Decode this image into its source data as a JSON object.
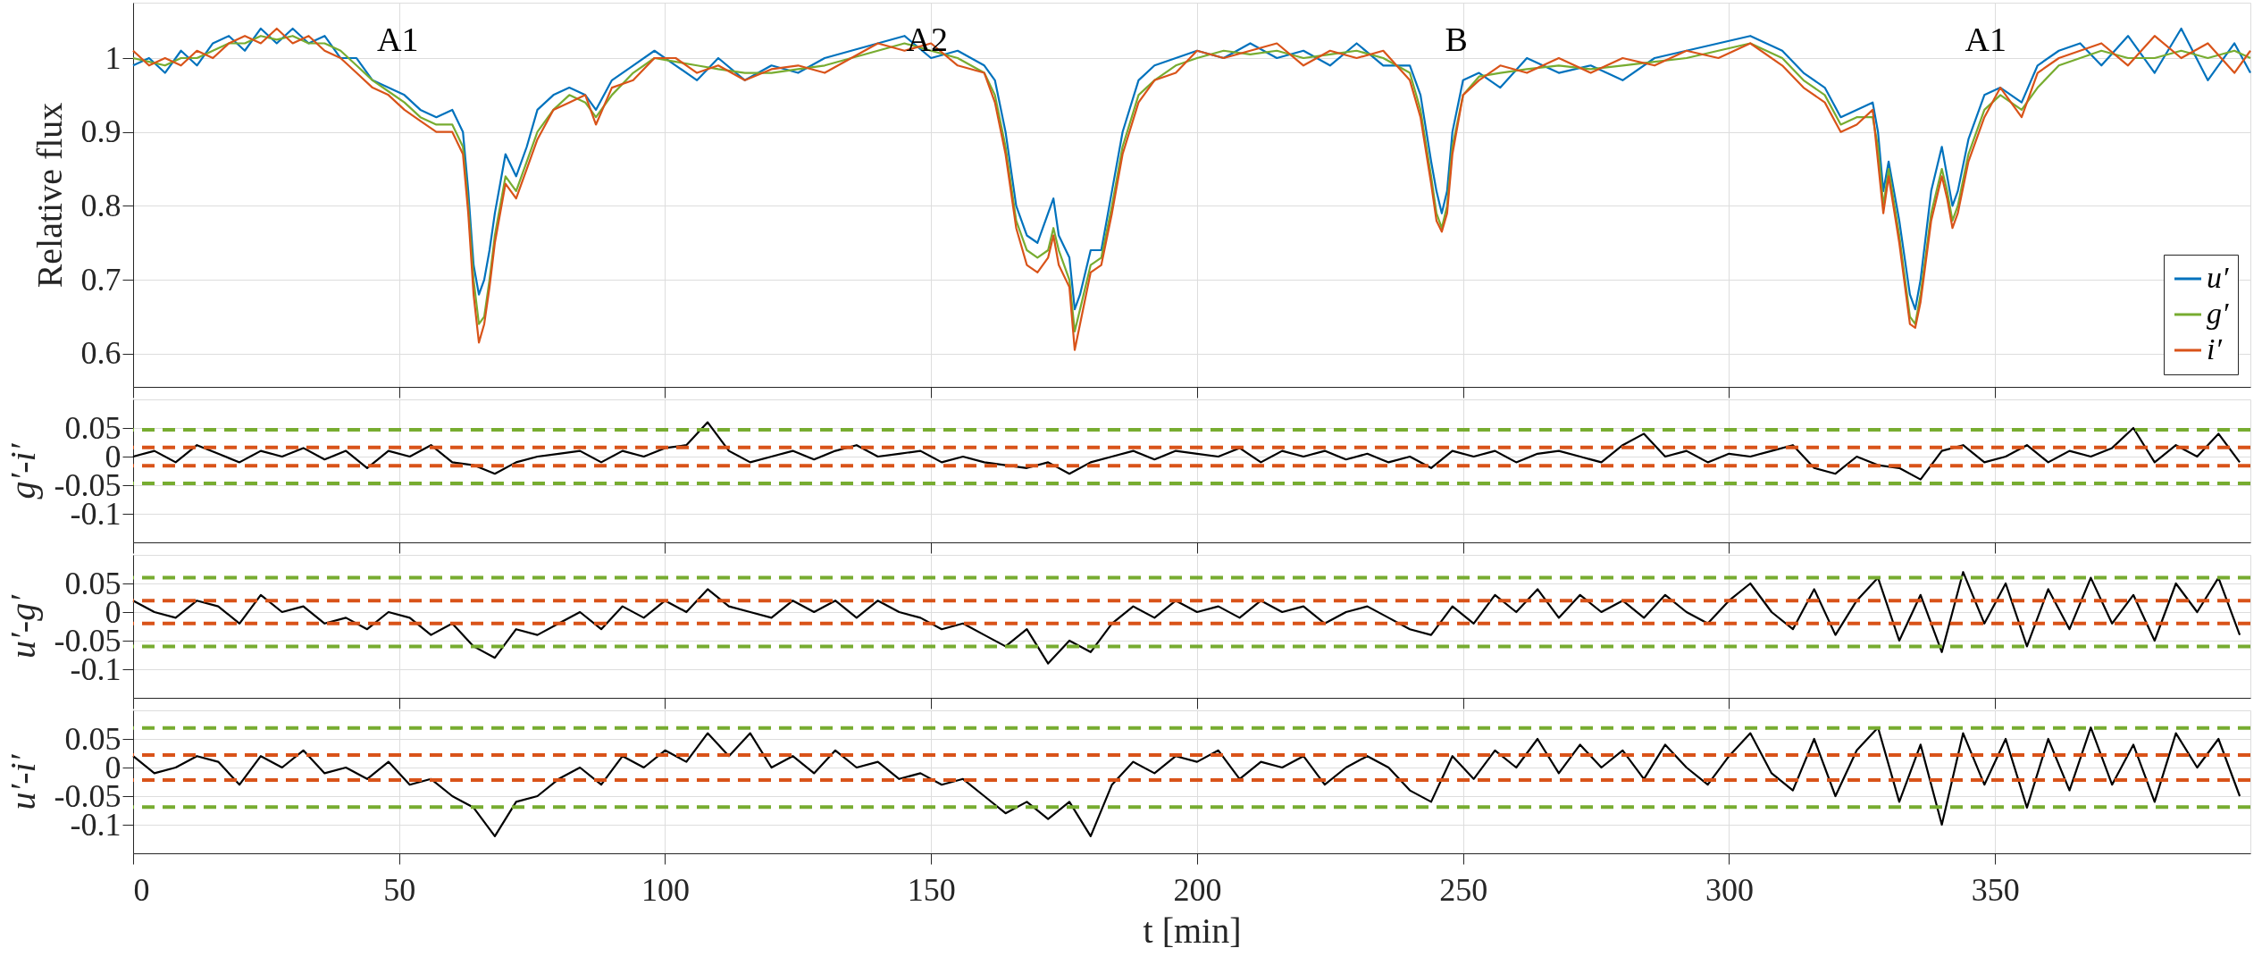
{
  "chart_data": [
    {
      "type": "line",
      "ylabel": "Relative flux",
      "xlim": [
        0,
        398
      ],
      "xticks": [
        0,
        50,
        100,
        150,
        200,
        250,
        300,
        350
      ],
      "ylim": [
        0.555,
        1.075
      ],
      "yticks": [
        0.6,
        0.7,
        0.8,
        0.9,
        1
      ],
      "grid": true,
      "legend": "bottom right",
      "tick_labels": "y",
      "annotations": [
        "A1",
        "A2",
        "B",
        "A1"
      ],
      "x": [
        0,
        3,
        6,
        9,
        12,
        15,
        18,
        21,
        24,
        27,
        30,
        33,
        36,
        39,
        42,
        45,
        48,
        51,
        54,
        57,
        60,
        62,
        63,
        64,
        65,
        66,
        67,
        68,
        70,
        72,
        74,
        76,
        79,
        82,
        85,
        87,
        90,
        94,
        98,
        102,
        106,
        110,
        115,
        120,
        125,
        130,
        135,
        140,
        145,
        150,
        155,
        160,
        162,
        164,
        166,
        168,
        170,
        172,
        173,
        174,
        176,
        177,
        178,
        180,
        182,
        184,
        186,
        189,
        192,
        196,
        200,
        205,
        210,
        215,
        220,
        225,
        230,
        235,
        240,
        242,
        244,
        245,
        246,
        247,
        248,
        250,
        253,
        257,
        262,
        268,
        274,
        280,
        286,
        292,
        298,
        304,
        310,
        314,
        318,
        321,
        324,
        327,
        328,
        329,
        330,
        332,
        334,
        335,
        336,
        338,
        340,
        341,
        342,
        343,
        345,
        348,
        351,
        355,
        358,
        362,
        366,
        370,
        375,
        380,
        385,
        390,
        395,
        398
      ],
      "series": [
        {
          "name": "u′",
          "color": "#0072bd",
          "values": [
            0.99,
            1.0,
            0.98,
            1.01,
            0.99,
            1.02,
            1.03,
            1.01,
            1.04,
            1.02,
            1.04,
            1.02,
            1.03,
            1.0,
            1.0,
            0.97,
            0.96,
            0.95,
            0.93,
            0.92,
            0.93,
            0.9,
            0.82,
            0.72,
            0.68,
            0.7,
            0.74,
            0.79,
            0.87,
            0.84,
            0.88,
            0.93,
            0.95,
            0.96,
            0.95,
            0.93,
            0.97,
            0.99,
            1.01,
            0.99,
            0.97,
            1.0,
            0.97,
            0.99,
            0.98,
            1.0,
            1.01,
            1.02,
            1.03,
            1.0,
            1.01,
            0.99,
            0.97,
            0.9,
            0.8,
            0.76,
            0.75,
            0.79,
            0.81,
            0.76,
            0.73,
            0.66,
            0.68,
            0.74,
            0.74,
            0.82,
            0.9,
            0.97,
            0.99,
            1.0,
            1.01,
            1.0,
            1.02,
            1.0,
            1.01,
            0.99,
            1.02,
            0.99,
            0.99,
            0.95,
            0.86,
            0.82,
            0.79,
            0.82,
            0.9,
            0.97,
            0.98,
            0.96,
            1.0,
            0.98,
            0.99,
            0.97,
            1.0,
            1.01,
            1.02,
            1.03,
            1.01,
            0.98,
            0.96,
            0.92,
            0.93,
            0.94,
            0.9,
            0.82,
            0.86,
            0.78,
            0.68,
            0.66,
            0.7,
            0.82,
            0.88,
            0.84,
            0.8,
            0.82,
            0.89,
            0.95,
            0.96,
            0.94,
            0.99,
            1.01,
            1.02,
            0.99,
            1.03,
            0.98,
            1.04,
            0.97,
            1.02,
            0.98
          ]
        },
        {
          "name": "g′",
          "color": "#77ac30",
          "values": [
            1.0,
            0.995,
            0.99,
            1.0,
            1.0,
            1.01,
            1.02,
            1.02,
            1.03,
            1.025,
            1.03,
            1.02,
            1.02,
            1.01,
            0.99,
            0.97,
            0.955,
            0.94,
            0.92,
            0.91,
            0.91,
            0.88,
            0.8,
            0.7,
            0.64,
            0.65,
            0.7,
            0.76,
            0.84,
            0.82,
            0.86,
            0.9,
            0.93,
            0.95,
            0.94,
            0.92,
            0.95,
            0.98,
            1.0,
            0.995,
            0.99,
            0.985,
            0.98,
            0.98,
            0.985,
            0.99,
            1.0,
            1.01,
            1.02,
            1.01,
            1.0,
            0.98,
            0.95,
            0.88,
            0.78,
            0.74,
            0.73,
            0.74,
            0.77,
            0.74,
            0.7,
            0.63,
            0.66,
            0.72,
            0.73,
            0.8,
            0.88,
            0.95,
            0.97,
            0.99,
            1.0,
            1.01,
            1.005,
            1.01,
            1.0,
            1.005,
            1.01,
            1.0,
            0.98,
            0.93,
            0.84,
            0.79,
            0.77,
            0.8,
            0.88,
            0.95,
            0.975,
            0.98,
            0.985,
            0.99,
            0.985,
            0.99,
            0.995,
            1.0,
            1.01,
            1.02,
            1.0,
            0.97,
            0.95,
            0.91,
            0.92,
            0.92,
            0.88,
            0.8,
            0.85,
            0.76,
            0.65,
            0.64,
            0.68,
            0.79,
            0.85,
            0.82,
            0.78,
            0.8,
            0.87,
            0.93,
            0.95,
            0.93,
            0.96,
            0.99,
            1.0,
            1.01,
            1.0,
            1.0,
            1.01,
            1.0,
            1.01,
            1.0
          ]
        },
        {
          "name": "i′",
          "color": "#d95319",
          "values": [
            1.01,
            0.99,
            1.0,
            0.99,
            1.01,
            1.0,
            1.02,
            1.03,
            1.02,
            1.04,
            1.02,
            1.03,
            1.01,
            1.0,
            0.98,
            0.96,
            0.95,
            0.93,
            0.915,
            0.9,
            0.9,
            0.87,
            0.79,
            0.68,
            0.615,
            0.64,
            0.69,
            0.75,
            0.83,
            0.81,
            0.85,
            0.89,
            0.93,
            0.94,
            0.95,
            0.91,
            0.96,
            0.97,
            1.0,
            1.0,
            0.98,
            0.99,
            0.97,
            0.985,
            0.99,
            0.98,
            1.0,
            1.02,
            1.01,
            1.02,
            0.99,
            0.98,
            0.94,
            0.87,
            0.77,
            0.72,
            0.71,
            0.73,
            0.76,
            0.72,
            0.69,
            0.605,
            0.64,
            0.71,
            0.72,
            0.79,
            0.87,
            0.94,
            0.97,
            0.98,
            1.01,
            1.0,
            1.01,
            1.02,
            0.99,
            1.01,
            1.0,
            1.01,
            0.97,
            0.92,
            0.83,
            0.78,
            0.765,
            0.79,
            0.87,
            0.95,
            0.97,
            0.99,
            0.98,
            1.0,
            0.98,
            1.0,
            0.99,
            1.01,
            1.0,
            1.02,
            0.99,
            0.96,
            0.94,
            0.9,
            0.91,
            0.93,
            0.86,
            0.79,
            0.84,
            0.75,
            0.64,
            0.635,
            0.67,
            0.78,
            0.84,
            0.81,
            0.77,
            0.79,
            0.86,
            0.92,
            0.96,
            0.92,
            0.98,
            1.0,
            1.01,
            1.02,
            0.99,
            1.03,
            1.0,
            1.02,
            0.98,
            1.01
          ]
        }
      ]
    },
    {
      "type": "line",
      "ylabel": "g′-i′",
      "xlim": [
        0,
        398
      ],
      "xticks": [
        0,
        50,
        100,
        150,
        200,
        250,
        300,
        350
      ],
      "ylim": [
        -0.15,
        0.1
      ],
      "yticks": [
        0.05,
        0,
        -0.05,
        -0.1
      ],
      "grid": true,
      "tick_labels": "y",
      "ref_lines": [
        {
          "axis": "y",
          "value": 0.047,
          "color": "#77ac30",
          "line_style": "dashed"
        },
        {
          "axis": "y",
          "value": 0.016,
          "color": "#d95319",
          "line_style": "dashed"
        },
        {
          "axis": "y",
          "value": -0.016,
          "color": "#d95319",
          "line_style": "dashed"
        },
        {
          "axis": "y",
          "value": -0.047,
          "color": "#77ac30",
          "line_style": "dashed"
        }
      ],
      "x": [
        0,
        4,
        8,
        12,
        16,
        20,
        24,
        28,
        32,
        36,
        40,
        44,
        48,
        52,
        56,
        60,
        64,
        68,
        72,
        76,
        80,
        84,
        88,
        92,
        96,
        100,
        104,
        108,
        112,
        116,
        120,
        124,
        128,
        132,
        136,
        140,
        144,
        148,
        152,
        156,
        160,
        164,
        168,
        172,
        176,
        180,
        184,
        188,
        192,
        196,
        200,
        204,
        208,
        212,
        216,
        220,
        224,
        228,
        232,
        236,
        240,
        244,
        248,
        252,
        256,
        260,
        264,
        268,
        272,
        276,
        280,
        284,
        288,
        292,
        296,
        300,
        304,
        308,
        312,
        316,
        320,
        324,
        328,
        332,
        336,
        340,
        344,
        348,
        352,
        356,
        360,
        364,
        368,
        372,
        376,
        380,
        384,
        388,
        392,
        396
      ],
      "series": [
        {
          "color": "#000000",
          "values": [
            0.0,
            0.01,
            -0.01,
            0.02,
            0.005,
            -0.01,
            0.01,
            0.0,
            0.015,
            -0.005,
            0.01,
            -0.02,
            0.01,
            0.0,
            0.02,
            -0.01,
            -0.015,
            -0.03,
            -0.01,
            0.0,
            0.005,
            0.01,
            -0.01,
            0.01,
            0.0,
            0.015,
            0.02,
            0.06,
            0.01,
            -0.01,
            0.0,
            0.01,
            -0.005,
            0.01,
            0.02,
            0.0,
            0.005,
            0.01,
            -0.01,
            0.0,
            -0.01,
            -0.015,
            -0.02,
            -0.01,
            -0.03,
            -0.01,
            0.0,
            0.01,
            -0.005,
            0.01,
            0.005,
            0.0,
            0.015,
            -0.01,
            0.01,
            0.0,
            0.01,
            -0.005,
            0.005,
            -0.01,
            0.0,
            -0.02,
            0.01,
            0.0,
            0.01,
            -0.01,
            0.005,
            0.01,
            0.0,
            -0.01,
            0.02,
            0.04,
            0.0,
            0.01,
            -0.01,
            0.005,
            0.0,
            0.01,
            0.02,
            -0.02,
            -0.03,
            0.0,
            -0.015,
            -0.02,
            -0.04,
            0.01,
            0.02,
            -0.01,
            0.0,
            0.02,
            -0.01,
            0.01,
            0.0,
            0.015,
            0.05,
            -0.01,
            0.02,
            0.0,
            0.04,
            -0.01
          ]
        }
      ]
    },
    {
      "type": "line",
      "ylabel": "u′-g′",
      "xlim": [
        0,
        398
      ],
      "xticks": [
        0,
        50,
        100,
        150,
        200,
        250,
        300,
        350
      ],
      "ylim": [
        -0.15,
        0.1
      ],
      "yticks": [
        0.05,
        0,
        -0.05,
        -0.1
      ],
      "grid": true,
      "tick_labels": "y",
      "ref_lines": [
        {
          "axis": "y",
          "value": 0.06,
          "color": "#77ac30",
          "line_style": "dashed"
        },
        {
          "axis": "y",
          "value": 0.02,
          "color": "#d95319",
          "line_style": "dashed"
        },
        {
          "axis": "y",
          "value": -0.02,
          "color": "#d95319",
          "line_style": "dashed"
        },
        {
          "axis": "y",
          "value": -0.06,
          "color": "#77ac30",
          "line_style": "dashed"
        }
      ],
      "x": [
        0,
        4,
        8,
        12,
        16,
        20,
        24,
        28,
        32,
        36,
        40,
        44,
        48,
        52,
        56,
        60,
        64,
        68,
        72,
        76,
        80,
        84,
        88,
        92,
        96,
        100,
        104,
        108,
        112,
        116,
        120,
        124,
        128,
        132,
        136,
        140,
        144,
        148,
        152,
        156,
        160,
        164,
        168,
        172,
        176,
        180,
        184,
        188,
        192,
        196,
        200,
        204,
        208,
        212,
        216,
        220,
        224,
        228,
        232,
        236,
        240,
        244,
        248,
        252,
        256,
        260,
        264,
        268,
        272,
        276,
        280,
        284,
        288,
        292,
        296,
        300,
        304,
        308,
        312,
        316,
        320,
        324,
        328,
        332,
        336,
        340,
        344,
        348,
        352,
        356,
        360,
        364,
        368,
        372,
        376,
        380,
        384,
        388,
        392,
        396
      ],
      "series": [
        {
          "color": "#000000",
          "values": [
            0.02,
            0.0,
            -0.01,
            0.02,
            0.01,
            -0.02,
            0.03,
            0.0,
            0.01,
            -0.02,
            -0.01,
            -0.03,
            0.0,
            -0.01,
            -0.04,
            -0.02,
            -0.06,
            -0.08,
            -0.03,
            -0.04,
            -0.02,
            0.0,
            -0.03,
            0.01,
            -0.01,
            0.02,
            0.0,
            0.04,
            0.01,
            0.0,
            -0.01,
            0.02,
            0.0,
            0.02,
            -0.01,
            0.02,
            0.0,
            -0.01,
            -0.03,
            -0.02,
            -0.04,
            -0.06,
            -0.03,
            -0.09,
            -0.05,
            -0.07,
            -0.02,
            0.01,
            -0.01,
            0.02,
            0.0,
            0.01,
            -0.01,
            0.02,
            0.0,
            0.01,
            -0.02,
            0.0,
            0.01,
            -0.01,
            -0.03,
            -0.04,
            0.01,
            -0.02,
            0.03,
            0.0,
            0.04,
            -0.01,
            0.03,
            0.0,
            0.02,
            -0.01,
            0.03,
            0.0,
            -0.02,
            0.02,
            0.05,
            0.0,
            -0.03,
            0.04,
            -0.04,
            0.02,
            0.06,
            -0.05,
            0.03,
            -0.07,
            0.07,
            -0.02,
            0.05,
            -0.06,
            0.04,
            -0.03,
            0.06,
            -0.02,
            0.03,
            -0.05,
            0.05,
            0.0,
            0.06,
            -0.04
          ]
        }
      ]
    },
    {
      "type": "line",
      "ylabel": "u′-i′",
      "xlabel": "t [min]",
      "xlim": [
        0,
        398
      ],
      "xticks": [
        0,
        50,
        100,
        150,
        200,
        250,
        300,
        350
      ],
      "ylim": [
        -0.15,
        0.1
      ],
      "yticks": [
        0.05,
        0,
        -0.05,
        -0.1
      ],
      "grid": true,
      "ref_lines": [
        {
          "axis": "y",
          "value": 0.069,
          "color": "#77ac30",
          "line_style": "dashed"
        },
        {
          "axis": "y",
          "value": 0.022,
          "color": "#d95319",
          "line_style": "dashed"
        },
        {
          "axis": "y",
          "value": -0.022,
          "color": "#d95319",
          "line_style": "dashed"
        },
        {
          "axis": "y",
          "value": -0.069,
          "color": "#77ac30",
          "line_style": "dashed"
        }
      ],
      "x": [
        0,
        4,
        8,
        12,
        16,
        20,
        24,
        28,
        32,
        36,
        40,
        44,
        48,
        52,
        56,
        60,
        64,
        68,
        72,
        76,
        80,
        84,
        88,
        92,
        96,
        100,
        104,
        108,
        112,
        116,
        120,
        124,
        128,
        132,
        136,
        140,
        144,
        148,
        152,
        156,
        160,
        164,
        168,
        172,
        176,
        180,
        184,
        188,
        192,
        196,
        200,
        204,
        208,
        212,
        216,
        220,
        224,
        228,
        232,
        236,
        240,
        244,
        248,
        252,
        256,
        260,
        264,
        268,
        272,
        276,
        280,
        284,
        288,
        292,
        296,
        300,
        304,
        308,
        312,
        316,
        320,
        324,
        328,
        332,
        336,
        340,
        344,
        348,
        352,
        356,
        360,
        364,
        368,
        372,
        376,
        380,
        384,
        388,
        392,
        396
      ],
      "series": [
        {
          "color": "#000000",
          "values": [
            0.02,
            -0.01,
            0.0,
            0.02,
            0.01,
            -0.03,
            0.02,
            0.0,
            0.03,
            -0.01,
            0.0,
            -0.02,
            0.01,
            -0.03,
            -0.02,
            -0.05,
            -0.07,
            -0.12,
            -0.06,
            -0.05,
            -0.02,
            0.0,
            -0.03,
            0.02,
            0.0,
            0.03,
            0.01,
            0.06,
            0.02,
            0.06,
            0.0,
            0.02,
            -0.01,
            0.03,
            0.0,
            0.01,
            -0.02,
            -0.01,
            -0.03,
            -0.02,
            -0.05,
            -0.08,
            -0.06,
            -0.09,
            -0.06,
            -0.12,
            -0.03,
            0.01,
            -0.01,
            0.02,
            0.01,
            0.03,
            -0.02,
            0.01,
            0.0,
            0.02,
            -0.03,
            0.0,
            0.02,
            0.0,
            -0.04,
            -0.06,
            0.02,
            -0.02,
            0.03,
            0.0,
            0.05,
            -0.01,
            0.04,
            0.0,
            0.03,
            -0.02,
            0.04,
            0.0,
            -0.03,
            0.02,
            0.06,
            -0.01,
            -0.04,
            0.05,
            -0.05,
            0.03,
            0.07,
            -0.06,
            0.04,
            -0.1,
            0.06,
            -0.03,
            0.05,
            -0.07,
            0.05,
            -0.04,
            0.07,
            -0.03,
            0.04,
            -0.06,
            0.06,
            0.0,
            0.05,
            -0.05
          ]
        }
      ]
    }
  ]
}
